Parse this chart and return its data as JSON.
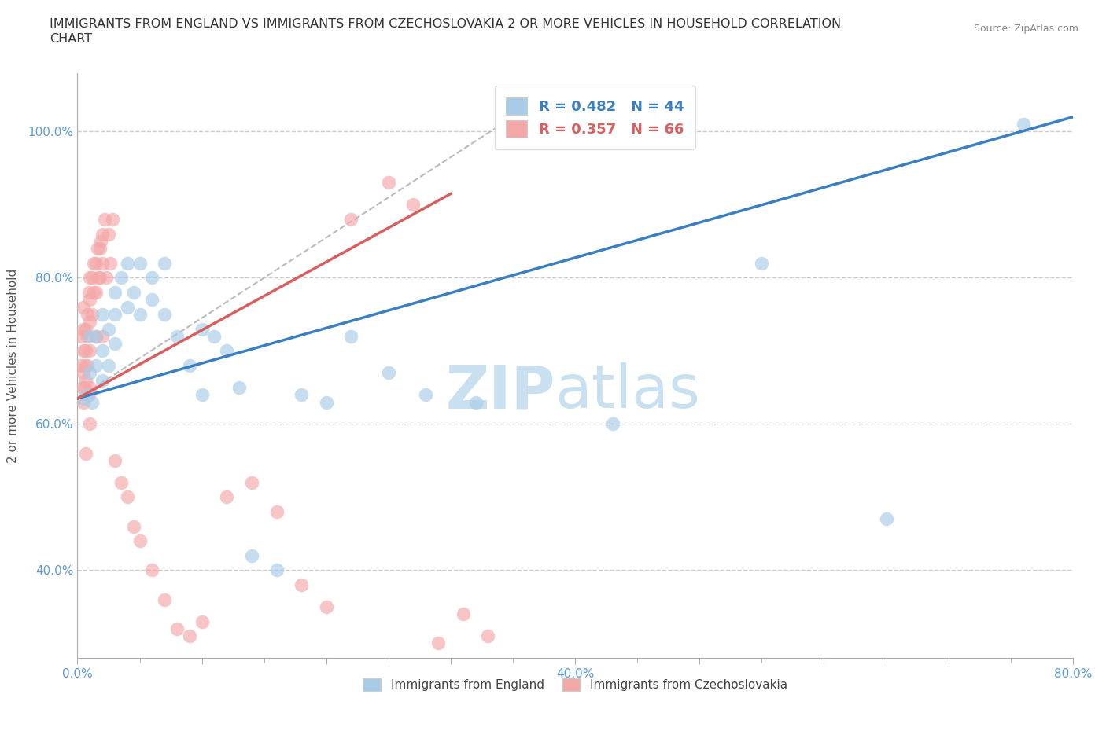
{
  "title": "IMMIGRANTS FROM ENGLAND VS IMMIGRANTS FROM CZECHOSLOVAKIA 2 OR MORE VEHICLES IN HOUSEHOLD CORRELATION\nCHART",
  "source": "Source: ZipAtlas.com",
  "ylabel": "2 or more Vehicles in Household",
  "xlim": [
    0.0,
    0.8
  ],
  "ylim": [
    0.28,
    1.08
  ],
  "xtick_positions": [
    0.0,
    0.1,
    0.2,
    0.3,
    0.4,
    0.5,
    0.6,
    0.7,
    0.8
  ],
  "xticklabels": [
    "0.0%",
    "",
    "",
    "",
    "40.0%",
    "",
    "",
    "",
    "80.0%"
  ],
  "ytick_positions": [
    0.4,
    0.6,
    0.8,
    1.0
  ],
  "yticklabels": [
    "40.0%",
    "60.0%",
    "80.0%",
    "100.0%"
  ],
  "england_R": 0.482,
  "england_N": 44,
  "czech_R": 0.357,
  "czech_N": 66,
  "england_color": "#a8cce8",
  "czech_color": "#f4a7a7",
  "england_line_color": "#3a7fc1",
  "czech_line_color": "#d95f5f",
  "england_line": {
    "x0": 0.0,
    "y0": 0.635,
    "x1": 0.8,
    "y1": 1.02
  },
  "czech_line": {
    "x0": 0.0,
    "y0": 0.635,
    "x1": 0.3,
    "y1": 0.915
  },
  "diag_line": {
    "x0": 0.0,
    "y0": 0.635,
    "x1": 0.35,
    "y1": 1.02
  },
  "england_scatter_x": [
    0.005,
    0.008,
    0.01,
    0.01,
    0.012,
    0.015,
    0.015,
    0.02,
    0.02,
    0.02,
    0.025,
    0.025,
    0.03,
    0.03,
    0.03,
    0.035,
    0.04,
    0.04,
    0.045,
    0.05,
    0.05,
    0.06,
    0.06,
    0.07,
    0.07,
    0.08,
    0.09,
    0.1,
    0.1,
    0.11,
    0.12,
    0.13,
    0.14,
    0.16,
    0.18,
    0.2,
    0.22,
    0.25,
    0.28,
    0.32,
    0.43,
    0.55,
    0.65,
    0.76
  ],
  "england_scatter_y": [
    0.635,
    0.64,
    0.67,
    0.72,
    0.63,
    0.68,
    0.72,
    0.7,
    0.66,
    0.75,
    0.68,
    0.73,
    0.71,
    0.75,
    0.78,
    0.8,
    0.76,
    0.82,
    0.78,
    0.75,
    0.82,
    0.8,
    0.77,
    0.75,
    0.82,
    0.72,
    0.68,
    0.64,
    0.73,
    0.72,
    0.7,
    0.65,
    0.42,
    0.4,
    0.64,
    0.63,
    0.72,
    0.67,
    0.64,
    0.63,
    0.6,
    0.82,
    0.47,
    1.01
  ],
  "czech_scatter_x": [
    0.003,
    0.003,
    0.004,
    0.005,
    0.005,
    0.005,
    0.005,
    0.005,
    0.006,
    0.006,
    0.007,
    0.007,
    0.007,
    0.007,
    0.008,
    0.008,
    0.008,
    0.009,
    0.009,
    0.01,
    0.01,
    0.01,
    0.01,
    0.01,
    0.01,
    0.012,
    0.012,
    0.013,
    0.013,
    0.015,
    0.015,
    0.015,
    0.016,
    0.017,
    0.018,
    0.018,
    0.019,
    0.02,
    0.02,
    0.02,
    0.022,
    0.023,
    0.025,
    0.026,
    0.028,
    0.03,
    0.035,
    0.04,
    0.045,
    0.05,
    0.06,
    0.07,
    0.08,
    0.09,
    0.1,
    0.12,
    0.14,
    0.16,
    0.18,
    0.2,
    0.22,
    0.25,
    0.27,
    0.29,
    0.31,
    0.33
  ],
  "czech_scatter_y": [
    0.68,
    0.72,
    0.65,
    0.67,
    0.7,
    0.73,
    0.76,
    0.63,
    0.65,
    0.68,
    0.66,
    0.7,
    0.73,
    0.56,
    0.68,
    0.72,
    0.75,
    0.78,
    0.64,
    0.8,
    0.77,
    0.74,
    0.7,
    0.65,
    0.6,
    0.8,
    0.75,
    0.82,
    0.78,
    0.82,
    0.78,
    0.72,
    0.84,
    0.8,
    0.84,
    0.8,
    0.85,
    0.86,
    0.82,
    0.72,
    0.88,
    0.8,
    0.86,
    0.82,
    0.88,
    0.55,
    0.52,
    0.5,
    0.46,
    0.44,
    0.4,
    0.36,
    0.32,
    0.31,
    0.33,
    0.5,
    0.52,
    0.48,
    0.38,
    0.35,
    0.88,
    0.93,
    0.9,
    0.3,
    0.34,
    0.31
  ],
  "watermark_zip": "ZIP",
  "watermark_atlas": "atlas",
  "watermark_color": "#c8e0f0",
  "background_color": "#ffffff",
  "grid_color": "#cccccc",
  "tick_color": "#5b9bd5",
  "title_color": "#333333",
  "source_color": "#888888"
}
